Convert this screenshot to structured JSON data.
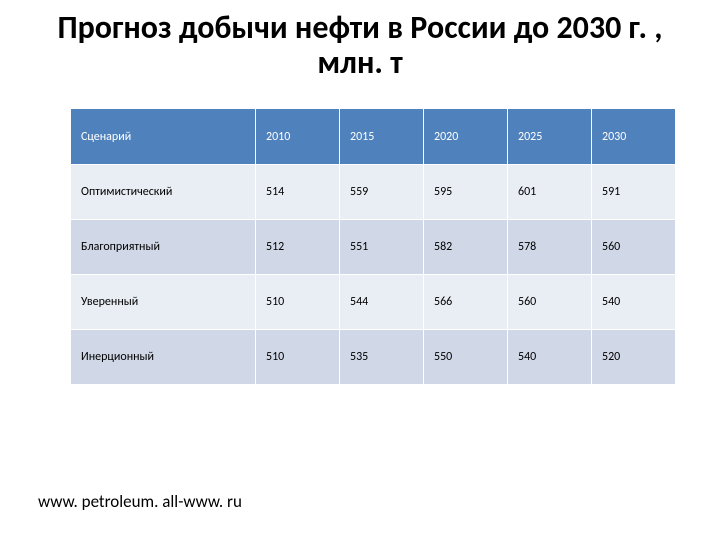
{
  "title": "Прогноз добычи нефти в России до 2030 г. , млн. т",
  "title_fontsize": 32,
  "footer": "www. petroleum. all-www. ru",
  "footer_fontsize": 17,
  "table": {
    "type": "table",
    "header_bg": "#4f81bd",
    "header_fg": "#ffffff",
    "row_alt_bg": [
      "#e9edf4",
      "#d0d8e8"
    ],
    "cell_fontsize": 12,
    "border_color": "#ffffff",
    "columns": [
      "Сценарий",
      "2010",
      "2015",
      "2020",
      "2025",
      "2030"
    ],
    "rows": [
      [
        "Оптимистический",
        "514",
        "559",
        "595",
        "601",
        "591"
      ],
      [
        "Благоприятный",
        "512",
        "551",
        "582",
        "578",
        "560"
      ],
      [
        "Уверенный",
        "510",
        "544",
        "566",
        "560",
        "540"
      ],
      [
        "Инерционный",
        "510",
        "535",
        "550",
        "540",
        "520"
      ]
    ]
  }
}
